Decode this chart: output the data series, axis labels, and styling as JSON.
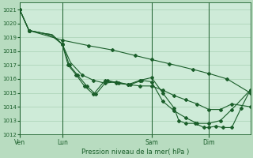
{
  "title": "",
  "xlabel": "Pression niveau de la mer( hPa )",
  "background_color": "#b8dcc0",
  "plot_bg_color": "#ceebd8",
  "grid_color": "#9ec9aa",
  "line_color": "#1a5e2a",
  "ylim": [
    1012,
    1021.5
  ],
  "yticks": [
    1012,
    1013,
    1014,
    1015,
    1016,
    1017,
    1018,
    1019,
    1020,
    1021
  ],
  "xtick_labels": [
    "Ven",
    "Lun",
    "Sam",
    "Dim"
  ],
  "xtick_positions": [
    0,
    0.185,
    0.572,
    0.82
  ],
  "vline_positions": [
    0,
    0.185,
    0.572,
    0.82
  ],
  "figsize": [
    3.2,
    2.0
  ],
  "dpi": 100
}
